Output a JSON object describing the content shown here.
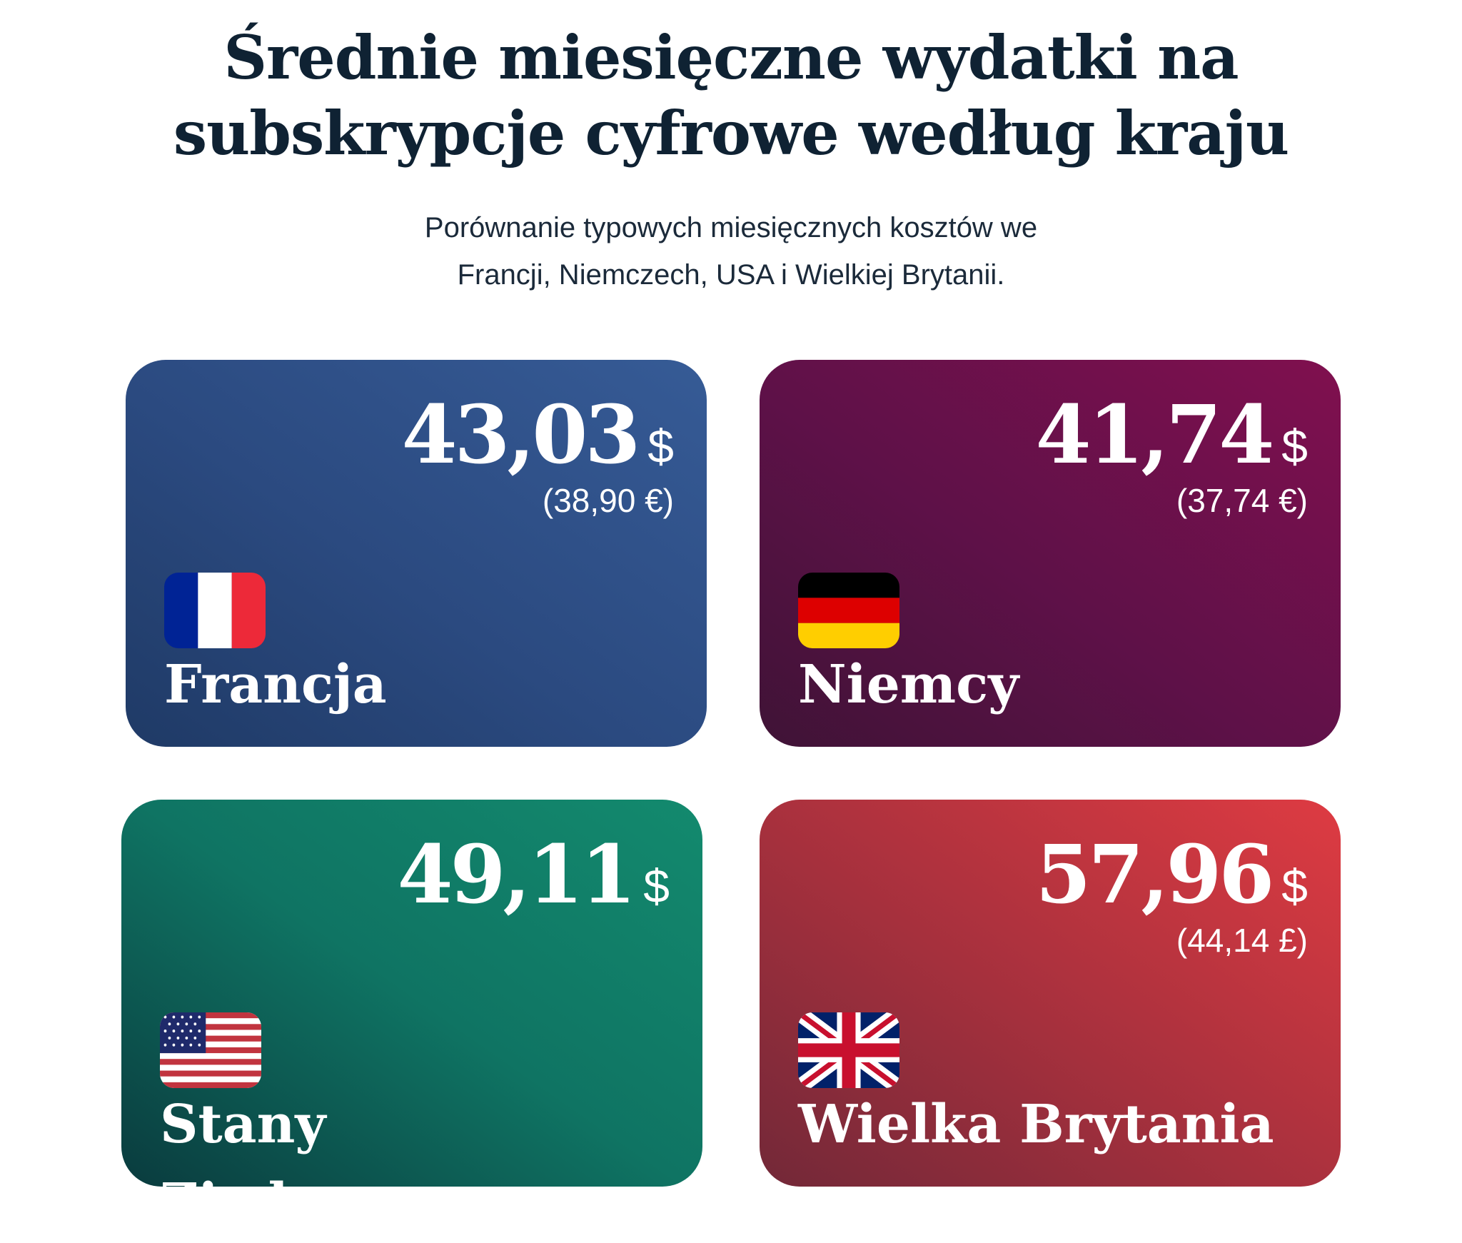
{
  "header": {
    "title_line1": "Średnie miesięczne wydatki na",
    "title_line2": "subskrypcje cyfrowe według kraju",
    "subtitle_line1": "Porównanie typowych miesięcznych kosztów we",
    "subtitle_line2": "Francji, Niemczech, USA i Wielkiej Brytanii."
  },
  "cards": [
    {
      "country": "Francja",
      "amount": "43,03",
      "currency": "$",
      "local": "(38,90 €)",
      "flag": "france-flag-icon",
      "color": "#2d4f89"
    },
    {
      "country": "Niemcy",
      "amount": "41,74",
      "currency": "$",
      "local": "(37,74 €)",
      "flag": "germany-flag-icon",
      "color": "#6e104b"
    },
    {
      "country": "Stany Zjednoczone",
      "amount": "49,11",
      "currency": "$",
      "flag": "usa-flag-icon",
      "color": "#0f7463"
    },
    {
      "country": "Wielka Brytania",
      "amount": "57,96",
      "currency": "$",
      "local": "(44,14 £)",
      "flag": "uk-flag-icon",
      "color": "#b8323f"
    }
  ]
}
